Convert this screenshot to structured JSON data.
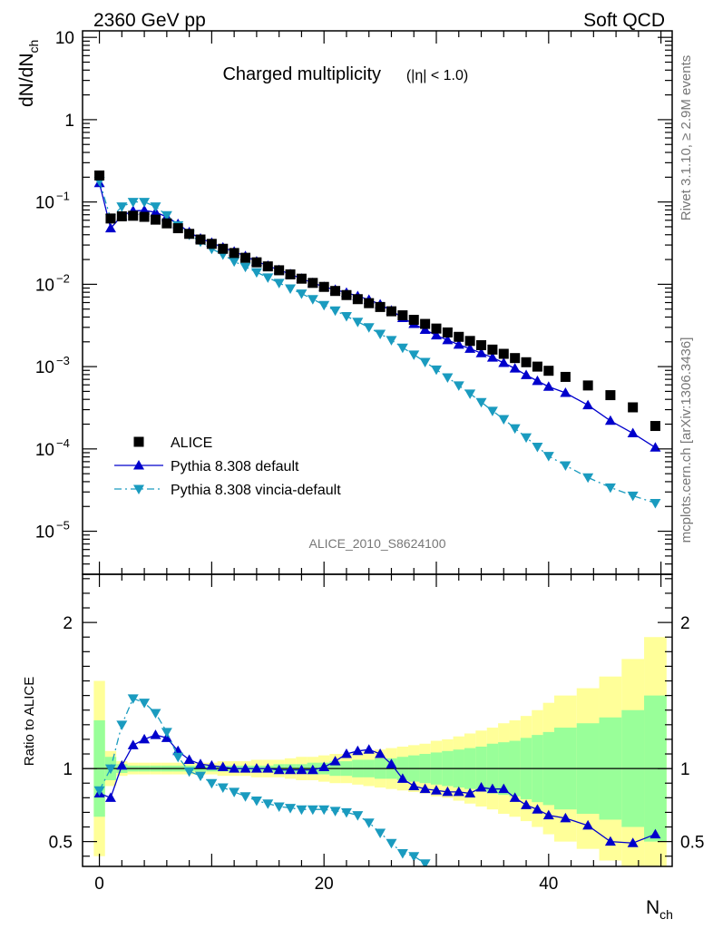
{
  "header": {
    "left": "2360 GeV pp",
    "right": "Soft QCD"
  },
  "side_text": {
    "rivet": "Rivet 3.1.10, ≥ 2.9M events",
    "mcplots": "mcplots.cern.ch [arXiv:1306.3436]"
  },
  "chart_data": {
    "type": "scatter",
    "title": "Charged multiplicity",
    "title_suffix": "(|η| < 1.0)",
    "analysis_tag": "ALICE_2010_S8624100",
    "xlabel": "N",
    "xlabel_sub": "ch",
    "ylabel": "dN/dN",
    "ylabel_sub": "ch",
    "ratio_ylabel": "Ratio to ALICE",
    "xlim": [
      -1.5,
      51
    ],
    "ylim": [
      3e-06,
      12
    ],
    "yscale": "log",
    "ratio_ylim": [
      0.33,
      2.33
    ],
    "x_ticks": [
      "0",
      "20",
      "40"
    ],
    "y_ticks": [
      {
        "base": "10",
        "exp": "",
        "value": 10
      },
      {
        "base": "1",
        "exp": "",
        "value": 1
      },
      {
        "base": "10",
        "exp": "−1",
        "value": 0.1
      },
      {
        "base": "10",
        "exp": "−2",
        "value": 0.01
      },
      {
        "base": "10",
        "exp": "−3",
        "value": 0.001
      },
      {
        "base": "10",
        "exp": "−4",
        "value": 0.0001
      },
      {
        "base": "10",
        "exp": "−5",
        "value": 1e-05
      }
    ],
    "ratio_ticks": [
      "0.5",
      "1",
      "2"
    ],
    "legend": {
      "placement": "bottom-left"
    },
    "series": [
      {
        "name": "ALICE",
        "color": "#000000",
        "marker": "square",
        "x": [
          0,
          1,
          2,
          3,
          4,
          5,
          6,
          7,
          8,
          9,
          10,
          11,
          12,
          13,
          14,
          15,
          16,
          17,
          18,
          19,
          20,
          21,
          22,
          23,
          24,
          25,
          26,
          27,
          28,
          29,
          30,
          31,
          32,
          33,
          34,
          35,
          36,
          37,
          38,
          39,
          40,
          41.5,
          43.5,
          45.5,
          47.5,
          49.5
        ],
        "y": [
          0.21,
          0.063,
          0.067,
          0.068,
          0.066,
          0.061,
          0.055,
          0.048,
          0.041,
          0.035,
          0.031,
          0.027,
          0.024,
          0.021,
          0.0185,
          0.0165,
          0.0148,
          0.0132,
          0.0117,
          0.0104,
          0.0093,
          0.0083,
          0.0074,
          0.0066,
          0.0059,
          0.0053,
          0.0047,
          0.0042,
          0.0037,
          0.0033,
          0.0029,
          0.0026,
          0.0023,
          0.00205,
          0.00182,
          0.00161,
          0.00143,
          0.00127,
          0.00113,
          0.001,
          0.00089,
          0.00075,
          0.00059,
          0.00045,
          0.00032,
          0.00019
        ]
      },
      {
        "name": "Pythia 8.308 default",
        "color": "#0000cc",
        "marker": "triangle-up",
        "line": "solid",
        "x": [
          0,
          1,
          2,
          3,
          4,
          5,
          6,
          7,
          8,
          9,
          10,
          11,
          12,
          13,
          14,
          15,
          16,
          17,
          18,
          19,
          20,
          21,
          22,
          23,
          24,
          25,
          26,
          27,
          28,
          29,
          30,
          31,
          32,
          33,
          34,
          35,
          36,
          37,
          38,
          39,
          40,
          41.5,
          43.5,
          45.5,
          47.5,
          49.5
        ],
        "y": [
          0.17,
          0.048,
          0.068,
          0.078,
          0.079,
          0.075,
          0.066,
          0.054,
          0.043,
          0.036,
          0.032,
          0.028,
          0.025,
          0.022,
          0.019,
          0.0168,
          0.0149,
          0.0133,
          0.0117,
          0.0104,
          0.0093,
          0.0086,
          0.0079,
          0.0072,
          0.0065,
          0.0057,
          0.0048,
          0.0039,
          0.0033,
          0.0028,
          0.0024,
          0.0021,
          0.00185,
          0.00165,
          0.00146,
          0.00129,
          0.00111,
          0.00095,
          0.00079,
          0.00067,
          0.00057,
          0.00048,
          0.00034,
          0.00022,
          0.000155,
          0.000104
        ],
        "ratio": [
          0.83,
          0.8,
          1.02,
          1.16,
          1.2,
          1.23,
          1.21,
          1.12,
          1.06,
          1.03,
          1.02,
          1.01,
          1.0,
          1.0,
          1.0,
          1.0,
          0.99,
          0.99,
          0.99,
          0.99,
          1.01,
          1.05,
          1.1,
          1.12,
          1.13,
          1.1,
          1.03,
          0.93,
          0.88,
          0.86,
          0.85,
          0.84,
          0.84,
          0.83,
          0.87,
          0.86,
          0.86,
          0.8,
          0.75,
          0.72,
          0.68,
          0.66,
          0.61,
          0.5,
          0.49,
          0.55
        ]
      },
      {
        "name": "Pythia 8.308 vincia-default",
        "color": "#1a9bbf",
        "marker": "triangle-down",
        "line": "dashdot",
        "x": [
          0,
          1,
          2,
          3,
          4,
          5,
          6,
          7,
          8,
          9,
          10,
          11,
          12,
          13,
          14,
          15,
          16,
          17,
          18,
          19,
          20,
          21,
          22,
          23,
          24,
          25,
          26,
          27,
          28,
          29,
          30,
          31,
          32,
          33,
          34,
          35,
          36,
          37,
          38,
          39,
          40,
          41.5,
          43.5,
          45.5,
          47.5,
          49.5
        ],
        "y": [
          0.18,
          0.063,
          0.088,
          0.1,
          0.1,
          0.088,
          0.069,
          0.052,
          0.04,
          0.033,
          0.027,
          0.023,
          0.019,
          0.0163,
          0.014,
          0.0121,
          0.0104,
          0.0089,
          0.0077,
          0.0066,
          0.0056,
          0.0048,
          0.0041,
          0.0035,
          0.003,
          0.0025,
          0.0021,
          0.0017,
          0.0014,
          0.00114,
          0.00092,
          0.00074,
          0.00059,
          0.00047,
          0.00037,
          0.00029,
          0.00023,
          0.000178,
          0.000138,
          0.000106,
          8.2e-05,
          6.3e-05,
          4.5e-05,
          3.4e-05,
          2.7e-05,
          2.2e-05
        ],
        "ratio": [
          0.85,
          1.0,
          1.3,
          1.48,
          1.45,
          1.38,
          1.25,
          1.08,
          0.98,
          0.95,
          0.9,
          0.87,
          0.84,
          0.81,
          0.78,
          0.76,
          0.74,
          0.73,
          0.72,
          0.72,
          0.72,
          0.71,
          0.7,
          0.68,
          0.63,
          0.56,
          0.49,
          0.42,
          0.4,
          0.35
        ]
      }
    ],
    "bands": {
      "inner_color": "#99ff99",
      "outer_color": "#ffff99",
      "edges": [
        -0.5,
        0.5,
        1.5,
        2.5,
        3.5,
        4.5,
        5.5,
        6.5,
        7.5,
        8.5,
        9.5,
        10.5,
        11.5,
        12.5,
        13.5,
        14.5,
        15.5,
        16.5,
        17.5,
        18.5,
        19.5,
        20.5,
        21.5,
        22.5,
        23.5,
        24.5,
        25.5,
        26.5,
        27.5,
        28.5,
        29.5,
        30.5,
        31.5,
        32.5,
        33.5,
        34.5,
        35.5,
        36.5,
        37.5,
        38.5,
        39.5,
        40.5,
        42.5,
        44.5,
        46.5,
        48.5,
        50.5
      ],
      "inner": [
        0.33,
        0.08,
        0.03,
        0.02,
        0.02,
        0.02,
        0.02,
        0.02,
        0.02,
        0.02,
        0.02,
        0.02,
        0.02,
        0.02,
        0.02,
        0.02,
        0.03,
        0.03,
        0.03,
        0.04,
        0.04,
        0.05,
        0.05,
        0.06,
        0.06,
        0.07,
        0.07,
        0.08,
        0.09,
        0.1,
        0.11,
        0.12,
        0.13,
        0.14,
        0.15,
        0.17,
        0.18,
        0.19,
        0.21,
        0.23,
        0.25,
        0.28,
        0.31,
        0.35,
        0.4,
        0.5
      ],
      "outer": [
        0.6,
        0.12,
        0.05,
        0.04,
        0.04,
        0.04,
        0.04,
        0.04,
        0.04,
        0.04,
        0.04,
        0.05,
        0.05,
        0.05,
        0.06,
        0.06,
        0.06,
        0.07,
        0.08,
        0.08,
        0.09,
        0.1,
        0.1,
        0.11,
        0.12,
        0.13,
        0.14,
        0.15,
        0.16,
        0.17,
        0.19,
        0.2,
        0.22,
        0.24,
        0.26,
        0.28,
        0.31,
        0.33,
        0.36,
        0.4,
        0.45,
        0.5,
        0.55,
        0.63,
        0.75,
        0.9
      ]
    }
  }
}
